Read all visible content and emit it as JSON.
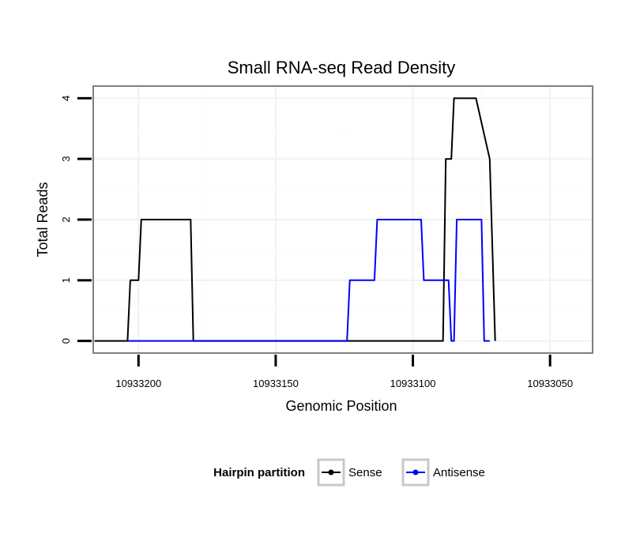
{
  "chart_data": {
    "type": "line",
    "title": "Small RNA-seq Read Density",
    "xlabel": "Genomic Position",
    "ylabel": "Total Reads",
    "x_reversed": true,
    "xlim": [
      10933216.5,
      10933034.5
    ],
    "ylim": [
      -0.2,
      4.2
    ],
    "x_ticks": [
      10933200,
      10933150,
      10933100,
      10933050
    ],
    "x_tick_labels": [
      "10933200",
      "10933150",
      "10933100",
      "10933050"
    ],
    "y_ticks": [
      0,
      1,
      2,
      3,
      4
    ],
    "y_tick_labels": [
      "0",
      "1",
      "2",
      "3",
      "4"
    ],
    "legend": {
      "title": "Hairpin partition",
      "position": "bottom"
    },
    "series": [
      {
        "name": "Sense",
        "color": "#000000",
        "x": [
          10933216,
          10933204,
          10933203,
          10933200,
          10933199,
          10933181,
          10933180,
          10933120,
          10933105,
          10933104,
          10933103,
          10933102,
          10933091,
          10933090,
          10933089,
          10933088,
          10933086,
          10933085,
          10933082,
          10933081,
          10933077,
          10933072,
          10933070
        ],
        "y": [
          0,
          0,
          1,
          1,
          2,
          2,
          0,
          0,
          0,
          0,
          0,
          0,
          0,
          0,
          0,
          3,
          3,
          4,
          4,
          4,
          4,
          3,
          0
        ]
      },
      {
        "name": "Antisense",
        "color": "#0000ff",
        "x": [
          10933204,
          10933180,
          10933179,
          10933124,
          10933123,
          10933114,
          10933113,
          10933097,
          10933096,
          10933087,
          10933086,
          10933085,
          10933084,
          10933075,
          10933074,
          10933073,
          10933072
        ],
        "y": [
          0,
          0,
          0,
          0,
          1,
          1,
          2,
          2,
          1,
          1,
          0,
          0,
          2,
          2,
          0,
          0,
          0
        ]
      }
    ]
  }
}
